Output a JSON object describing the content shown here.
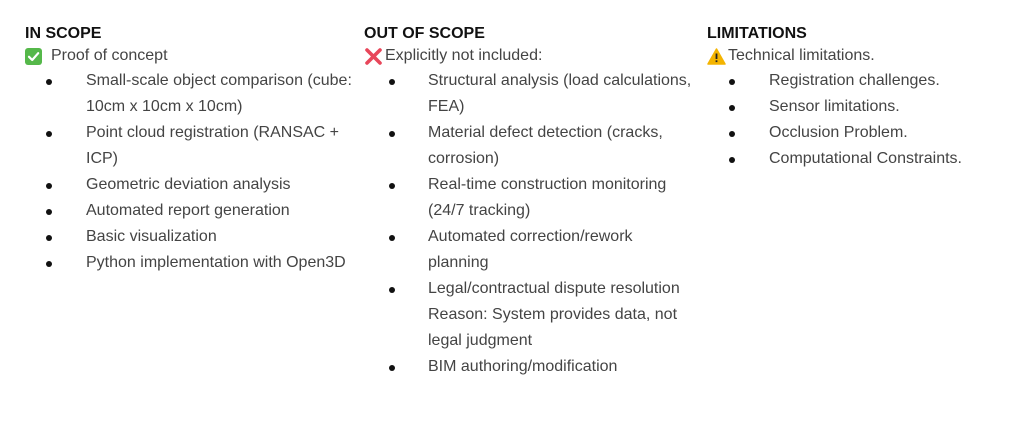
{
  "in_scope": {
    "heading": "IN SCOPE",
    "icon": "check-box-icon",
    "subheading": "Proof of concept",
    "items": [
      {
        "label": "Small-scale object comparison (cube: 10cm x 10cm x 10cm)"
      },
      {
        "label": "Point cloud registration (RANSAC + ICP)"
      },
      {
        "label": "Geometric deviation analysis"
      },
      {
        "label": "Automated report generation"
      },
      {
        "label": "Basic visualization"
      },
      {
        "label": "Python implementation with Open3D"
      }
    ]
  },
  "out_of_scope": {
    "heading": "OUT OF SCOPE",
    "icon": "cross-mark-icon",
    "subheading": "Explicitly not included:",
    "items": [
      {
        "label": "Structural analysis (load calculations, FEA)"
      },
      {
        "label": "Material defect detection (cracks, corrosion)"
      },
      {
        "label": "Real-time construction monitoring (24/7 tracking)"
      },
      {
        "label": "Automated correction/rework planning"
      },
      {
        "label": "Legal/contractual dispute resolution Reason: System provides data, not legal judgment"
      },
      {
        "label": "BIM authoring/modification"
      }
    ]
  },
  "limitations": {
    "heading": "LIMITATIONS",
    "icon": "warning-icon",
    "subheading": "Technical limitations.",
    "items": [
      {
        "label": "Registration challenges."
      },
      {
        "label": "Sensor limitations."
      },
      {
        "label": "Occlusion Problem."
      },
      {
        "label": "Computational Constraints."
      }
    ]
  },
  "colors": {
    "check": "#55b84a",
    "cross": "#e8465a",
    "warning": "#f4b400",
    "heading": "#111111",
    "text": "#444444"
  }
}
